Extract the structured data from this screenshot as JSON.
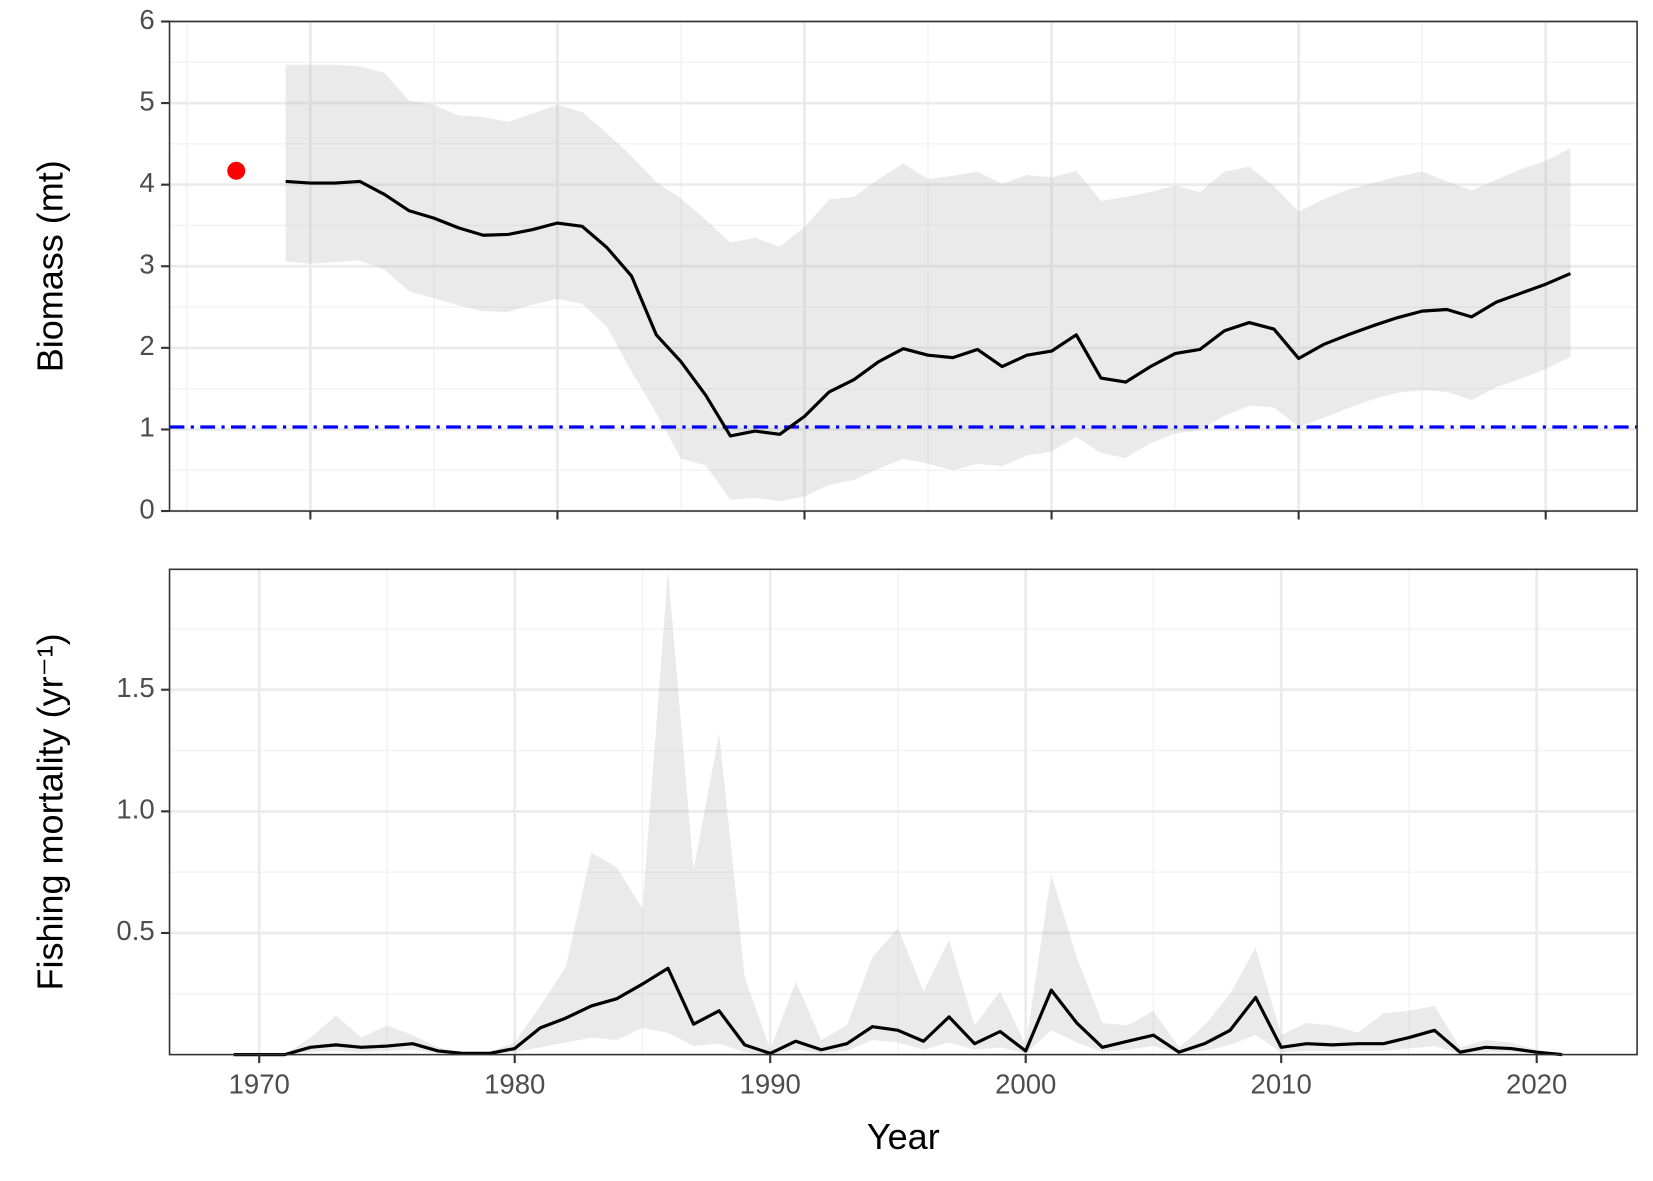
{
  "chart_data": [
    {
      "type": "line",
      "ylabel": "Biomass (mt)",
      "x": [
        1969,
        1970,
        1971,
        1972,
        1973,
        1974,
        1975,
        1976,
        1977,
        1978,
        1979,
        1980,
        1981,
        1982,
        1983,
        1984,
        1985,
        1986,
        1987,
        1988,
        1989,
        1990,
        1991,
        1992,
        1993,
        1994,
        1995,
        1996,
        1997,
        1998,
        1999,
        2000,
        2001,
        2002,
        2003,
        2004,
        2005,
        2006,
        2007,
        2008,
        2009,
        2010,
        2011,
        2012,
        2013,
        2014,
        2015,
        2016,
        2017,
        2018,
        2019,
        2020,
        2021
      ],
      "series": [
        {
          "color": "#000000",
          "values": [
            4.04,
            4.02,
            4.02,
            4.04,
            3.88,
            3.68,
            3.59,
            3.47,
            3.38,
            3.39,
            3.45,
            3.53,
            3.49,
            3.23,
            2.88,
            2.16,
            1.83,
            1.42,
            0.92,
            0.98,
            0.94,
            1.16,
            1.46,
            1.61,
            1.83,
            1.99,
            1.91,
            1.88,
            1.98,
            1.77,
            1.91,
            1.96,
            2.16,
            1.63,
            1.58,
            1.77,
            1.93,
            1.98,
            2.21,
            2.31,
            2.23,
            1.87,
            2.04,
            2.16,
            2.27,
            2.37,
            2.45,
            2.47,
            2.38,
            2.56,
            2.67,
            2.78,
            2.91
          ]
        }
      ],
      "band": {
        "color": "#bdbdbd",
        "upper": [
          5.47,
          5.47,
          5.47,
          5.45,
          5.37,
          5.03,
          4.98,
          4.85,
          4.83,
          4.77,
          4.87,
          4.98,
          4.89,
          4.63,
          4.35,
          4.03,
          3.83,
          3.57,
          3.29,
          3.35,
          3.24,
          3.48,
          3.82,
          3.85,
          4.07,
          4.26,
          4.07,
          4.11,
          4.16,
          4.01,
          4.12,
          4.09,
          4.17,
          3.8,
          3.85,
          3.91,
          3.99,
          3.91,
          4.16,
          4.22,
          3.98,
          3.67,
          3.82,
          3.94,
          4.02,
          4.1,
          4.16,
          4.04,
          3.93,
          4.06,
          4.19,
          4.29,
          4.45
        ],
        "lower": [
          3.06,
          3.03,
          3.05,
          3.07,
          2.96,
          2.69,
          2.61,
          2.52,
          2.45,
          2.44,
          2.53,
          2.6,
          2.54,
          2.26,
          1.71,
          1.2,
          0.64,
          0.56,
          0.14,
          0.16,
          0.12,
          0.18,
          0.32,
          0.38,
          0.52,
          0.64,
          0.58,
          0.5,
          0.58,
          0.55,
          0.68,
          0.73,
          0.91,
          0.71,
          0.65,
          0.83,
          0.95,
          0.99,
          1.17,
          1.29,
          1.27,
          1.03,
          1.14,
          1.26,
          1.37,
          1.45,
          1.48,
          1.46,
          1.36,
          1.52,
          1.62,
          1.74,
          1.89
        ]
      },
      "hline": {
        "value": 1.03,
        "color": "#0000ff"
      },
      "points": [
        {
          "x": 1967,
          "y": 4.17,
          "color": "#ff0000"
        }
      ],
      "xlim": [
        1964.3,
        2023.7
      ],
      "xticks": [
        1970,
        1980,
        1990,
        2000,
        2010,
        2020
      ],
      "ylim": [
        0,
        6
      ],
      "yticks": [
        0,
        1,
        2,
        3,
        4,
        5,
        6
      ],
      "grid": true
    },
    {
      "type": "line",
      "ylabel": "Fishing mortality (yr⁻¹)",
      "xlabel": "Year",
      "x": [
        1969,
        1970,
        1971,
        1972,
        1973,
        1974,
        1975,
        1976,
        1977,
        1978,
        1979,
        1980,
        1981,
        1982,
        1983,
        1984,
        1985,
        1986,
        1987,
        1988,
        1989,
        1990,
        1991,
        1992,
        1993,
        1994,
        1995,
        1996,
        1997,
        1998,
        1999,
        2000,
        2001,
        2002,
        2003,
        2004,
        2005,
        2006,
        2007,
        2008,
        2009,
        2010,
        2011,
        2012,
        2013,
        2014,
        2015,
        2016,
        2017,
        2018,
        2019,
        2020,
        2021
      ],
      "series": [
        {
          "color": "#000000",
          "values": [
            0,
            0,
            0,
            0.03,
            0.04,
            0.03,
            0.035,
            0.045,
            0.015,
            0.005,
            0.005,
            0.025,
            0.11,
            0.15,
            0.2,
            0.23,
            0.29,
            0.355,
            0.125,
            0.18,
            0.04,
            0.005,
            0.055,
            0.02,
            0.045,
            0.115,
            0.1,
            0.055,
            0.155,
            0.045,
            0.095,
            0.015,
            0.265,
            0.13,
            0.03,
            0.055,
            0.08,
            0.01,
            0.045,
            0.1,
            0.235,
            0.03,
            0.045,
            0.04,
            0.045,
            0.045,
            0.07,
            0.1,
            0.01,
            0.03,
            0.025,
            0.01,
            0
          ]
        }
      ],
      "band": {
        "color": "#bdbdbd",
        "upper": [
          0,
          0,
          0,
          0.07,
          0.16,
          0.07,
          0.12,
          0.08,
          0.03,
          0.01,
          0.01,
          0.05,
          0.2,
          0.36,
          0.83,
          0.77,
          0.6,
          1.99,
          0.76,
          1.32,
          0.32,
          0.02,
          0.3,
          0.06,
          0.12,
          0.4,
          0.52,
          0.26,
          0.47,
          0.12,
          0.26,
          0.04,
          0.74,
          0.4,
          0.13,
          0.12,
          0.18,
          0.03,
          0.12,
          0.25,
          0.44,
          0.08,
          0.13,
          0.12,
          0.09,
          0.17,
          0.18,
          0.2,
          0.03,
          0.06,
          0.05,
          0.02,
          0
        ],
        "lower": [
          0,
          0,
          0,
          0.01,
          0.015,
          0.01,
          0.015,
          0.02,
          0.005,
          0,
          0,
          0.01,
          0.03,
          0.05,
          0.07,
          0.06,
          0.11,
          0.09,
          0.035,
          0.045,
          0.01,
          0,
          0.02,
          0.005,
          0.015,
          0.06,
          0.05,
          0.02,
          0.05,
          0.02,
          0.03,
          0.005,
          0.1,
          0.05,
          0.01,
          0.02,
          0.035,
          0.005,
          0.015,
          0.04,
          0.08,
          0.01,
          0.015,
          0.015,
          0.015,
          0.015,
          0.025,
          0.035,
          0.003,
          0.01,
          0.01,
          0.005,
          0
        ]
      },
      "xlim": [
        1966.49,
        2023.93
      ],
      "xticks": [
        1970,
        1980,
        1990,
        2000,
        2010,
        2020
      ],
      "ylim": [
        0,
        1.995
      ],
      "yticks": [
        0.5,
        {
          "value": 1,
          "label": "1.0"
        },
        1.5
      ],
      "grid": true
    }
  ]
}
